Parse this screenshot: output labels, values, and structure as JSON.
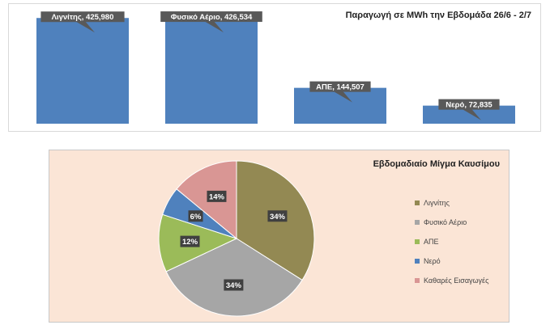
{
  "chart_data": [
    {
      "type": "bar",
      "title": "Παραγωγή σε MWh την Εβδομάδα 26/6 - 2/7",
      "categories": [
        "Λιγνίτης",
        "Φυσικό Αέριο",
        "ΑΠΕ",
        "Νερό"
      ],
      "values": [
        425980,
        426534,
        144507,
        72835
      ],
      "data_labels": [
        "Λιγνίτης, 425,980",
        "Φυσικό Αέριο, 426,534",
        "ΑΠΕ, 144,507",
        "Νερό, 72,835"
      ],
      "ylim": [
        0,
        430000
      ],
      "color": "#4f81bd",
      "grid": false,
      "legend": "none"
    },
    {
      "type": "pie",
      "title": "Εβδομαδιαίο Μίγμα Καυσίμου",
      "categories": [
        "Λιγνίτης",
        "Φυσικό Αέριο",
        "ΑΠΕ",
        "Νερό",
        "Καθαρές Εισαγωγές"
      ],
      "values": [
        34,
        34,
        12,
        6,
        14
      ],
      "data_labels": [
        "34%",
        "34%",
        "12%",
        "6%",
        "14%"
      ],
      "colors": [
        "#938953",
        "#a6a6a6",
        "#9bbb59",
        "#4f81bd",
        "#d99694"
      ],
      "legend": "right"
    }
  ]
}
